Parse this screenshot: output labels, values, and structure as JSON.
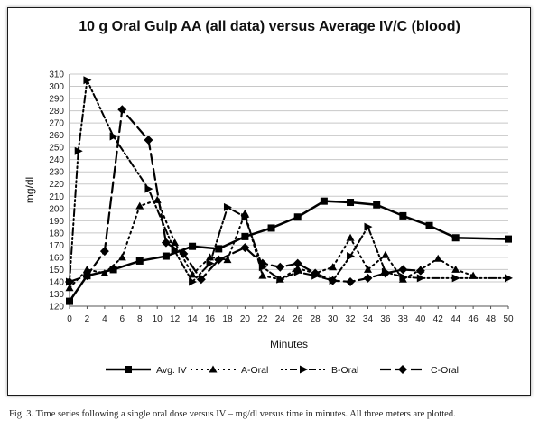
{
  "chart_data": {
    "type": "line",
    "title": "10 g Oral Gulp AA (all data) versus Average IV/C (blood)",
    "xlabel": "Minutes",
    "ylabel": "mg/dl",
    "xlim": [
      0,
      50
    ],
    "ylim": [
      120,
      310
    ],
    "xticks": [
      0,
      2,
      4,
      6,
      8,
      10,
      12,
      14,
      16,
      18,
      20,
      22,
      24,
      26,
      28,
      30,
      32,
      34,
      36,
      38,
      40,
      42,
      44,
      46,
      48,
      50
    ],
    "yticks": [
      120,
      130,
      140,
      150,
      160,
      170,
      180,
      190,
      200,
      210,
      220,
      230,
      240,
      250,
      260,
      270,
      280,
      290,
      300,
      310
    ],
    "grid": "horizontal",
    "legend_position": "bottom",
    "series": [
      {
        "name": "Avg. IV",
        "color": "#000000",
        "style": "solid",
        "marker": "square",
        "points": [
          [
            0,
            124
          ],
          [
            2,
            145
          ],
          [
            5,
            150
          ],
          [
            8,
            157
          ],
          [
            11,
            161
          ],
          [
            14,
            169
          ],
          [
            17,
            167
          ],
          [
            20,
            177
          ],
          [
            23,
            184
          ],
          [
            26,
            193
          ],
          [
            29,
            206
          ],
          [
            32,
            205
          ],
          [
            35,
            203
          ],
          [
            38,
            194
          ],
          [
            41,
            186
          ],
          [
            44,
            176
          ],
          [
            50,
            175
          ]
        ]
      },
      {
        "name": "A-Oral",
        "color": "#000000",
        "style": "dotted",
        "marker": "triangle-up",
        "points": [
          [
            0,
            135
          ],
          [
            2,
            150
          ],
          [
            4,
            147
          ],
          [
            6,
            160
          ],
          [
            8,
            202
          ],
          [
            10,
            207
          ],
          [
            12,
            172
          ],
          [
            14,
            146
          ],
          [
            16,
            160
          ],
          [
            18,
            158
          ],
          [
            20,
            196
          ],
          [
            22,
            145
          ],
          [
            24,
            142
          ],
          [
            26,
            151
          ],
          [
            28,
            147
          ],
          [
            30,
            152
          ],
          [
            32,
            176
          ],
          [
            34,
            150
          ],
          [
            36,
            162
          ],
          [
            38,
            142
          ],
          [
            40,
            150
          ],
          [
            42,
            159
          ],
          [
            44,
            150
          ],
          [
            46,
            145
          ]
        ]
      },
      {
        "name": "B-Oral",
        "color": "#000000",
        "style": "dash-dot",
        "marker": "triangle-right",
        "points": [
          [
            0,
            140
          ],
          [
            1,
            247
          ],
          [
            2,
            305
          ],
          [
            5,
            259
          ],
          [
            9,
            216
          ],
          [
            12,
            165
          ],
          [
            14,
            140
          ],
          [
            16,
            155
          ],
          [
            18,
            201
          ],
          [
            20,
            193
          ],
          [
            22,
            152
          ],
          [
            24,
            142
          ],
          [
            26,
            148
          ],
          [
            28,
            145
          ],
          [
            30,
            141
          ],
          [
            32,
            161
          ],
          [
            34,
            185
          ],
          [
            36,
            148
          ],
          [
            38,
            144
          ],
          [
            40,
            143
          ],
          [
            44,
            143
          ],
          [
            50,
            143
          ]
        ]
      },
      {
        "name": "C-Oral",
        "color": "#000000",
        "style": "long-dash",
        "marker": "diamond",
        "points": [
          [
            0,
            140
          ],
          [
            2,
            145
          ],
          [
            4,
            165
          ],
          [
            6,
            281
          ],
          [
            9,
            256
          ],
          [
            11,
            172
          ],
          [
            13,
            163
          ],
          [
            15,
            142
          ],
          [
            17,
            158
          ],
          [
            20,
            168
          ],
          [
            22,
            155
          ],
          [
            24,
            152
          ],
          [
            26,
            155
          ],
          [
            28,
            147
          ],
          [
            30,
            141
          ],
          [
            32,
            140
          ],
          [
            34,
            143
          ],
          [
            36,
            147
          ],
          [
            38,
            150
          ],
          [
            40,
            149
          ]
        ]
      }
    ]
  },
  "caption": "Fig. 3.  Time series following a single oral dose versus IV – mg/dl  versus time in minutes. All three meters are plotted."
}
